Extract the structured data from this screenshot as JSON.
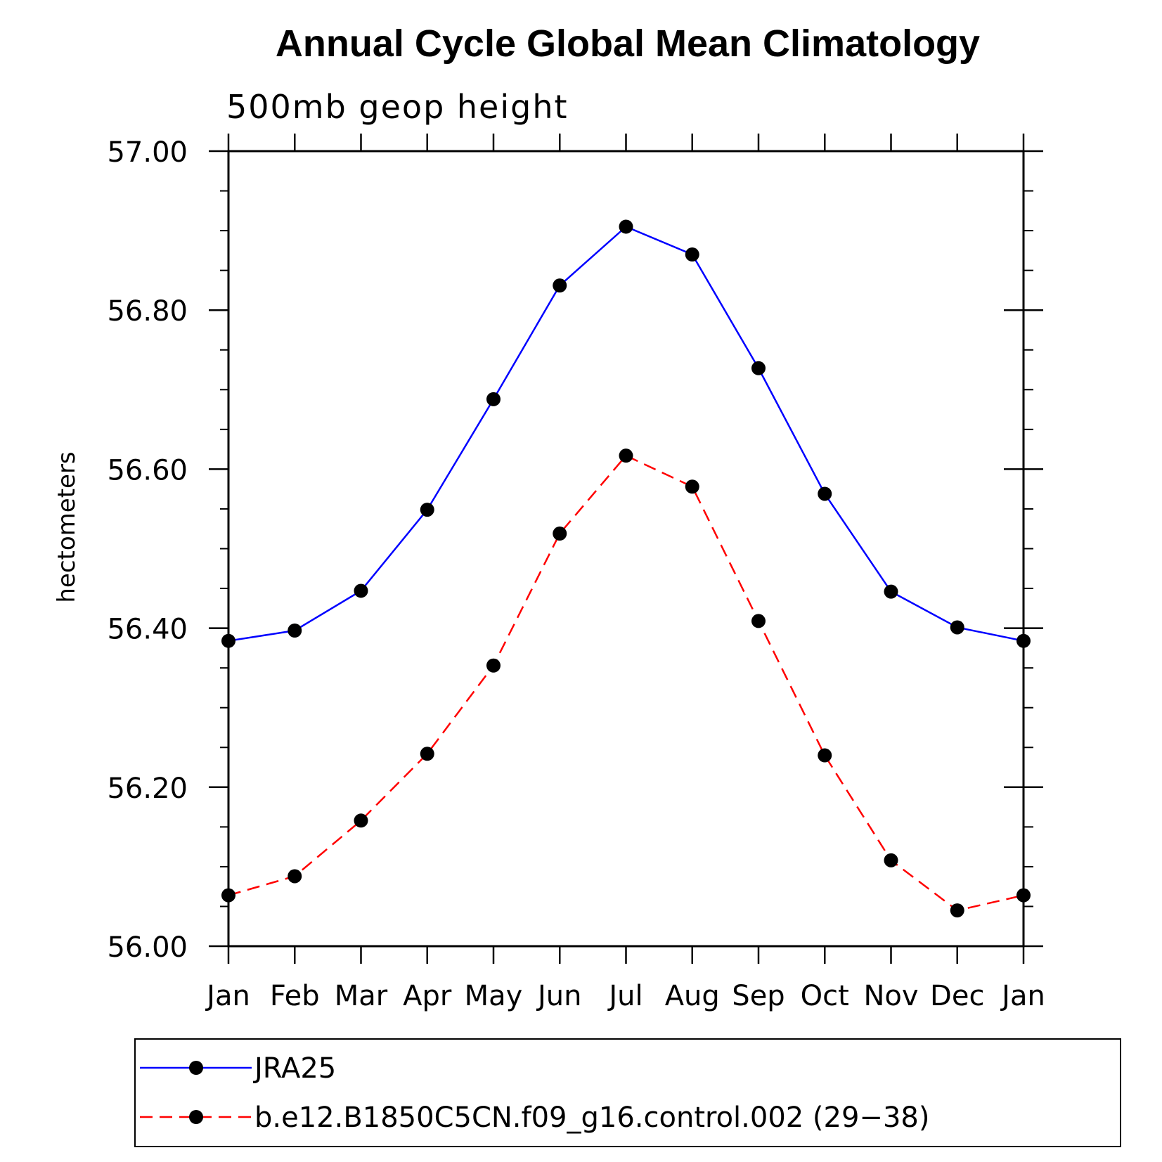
{
  "chart_data": {
    "type": "line",
    "title": "Annual Cycle Global Mean Climatology",
    "subtitle": "500mb geop height",
    "xlabel": "",
    "ylabel": "hectometers",
    "categories": [
      "Jan",
      "Feb",
      "Mar",
      "Apr",
      "May",
      "Jun",
      "Jul",
      "Aug",
      "Sep",
      "Oct",
      "Nov",
      "Dec",
      "Jan"
    ],
    "ylim": [
      56.0,
      57.0
    ],
    "yticks": [
      "56.00",
      "56.20",
      "56.40",
      "56.60",
      "56.80",
      "57.00"
    ],
    "grid": false,
    "legend_position": "bottom",
    "series": [
      {
        "name": "JRA25",
        "color": "#0000ff",
        "line_style": "solid",
        "marker": "filled-circle",
        "values": [
          56.384,
          56.397,
          56.447,
          56.549,
          56.688,
          56.831,
          56.905,
          56.87,
          56.727,
          56.569,
          56.446,
          56.401,
          56.384
        ]
      },
      {
        "name": "b.e12.B1850C5CN.f09_g16.control.002 (29−38)",
        "color": "#ff0000",
        "line_style": "dashed",
        "marker": "filled-circle",
        "values": [
          56.064,
          56.088,
          56.158,
          56.242,
          56.353,
          56.519,
          56.617,
          56.578,
          56.409,
          56.24,
          56.108,
          56.045,
          56.064
        ]
      }
    ]
  }
}
